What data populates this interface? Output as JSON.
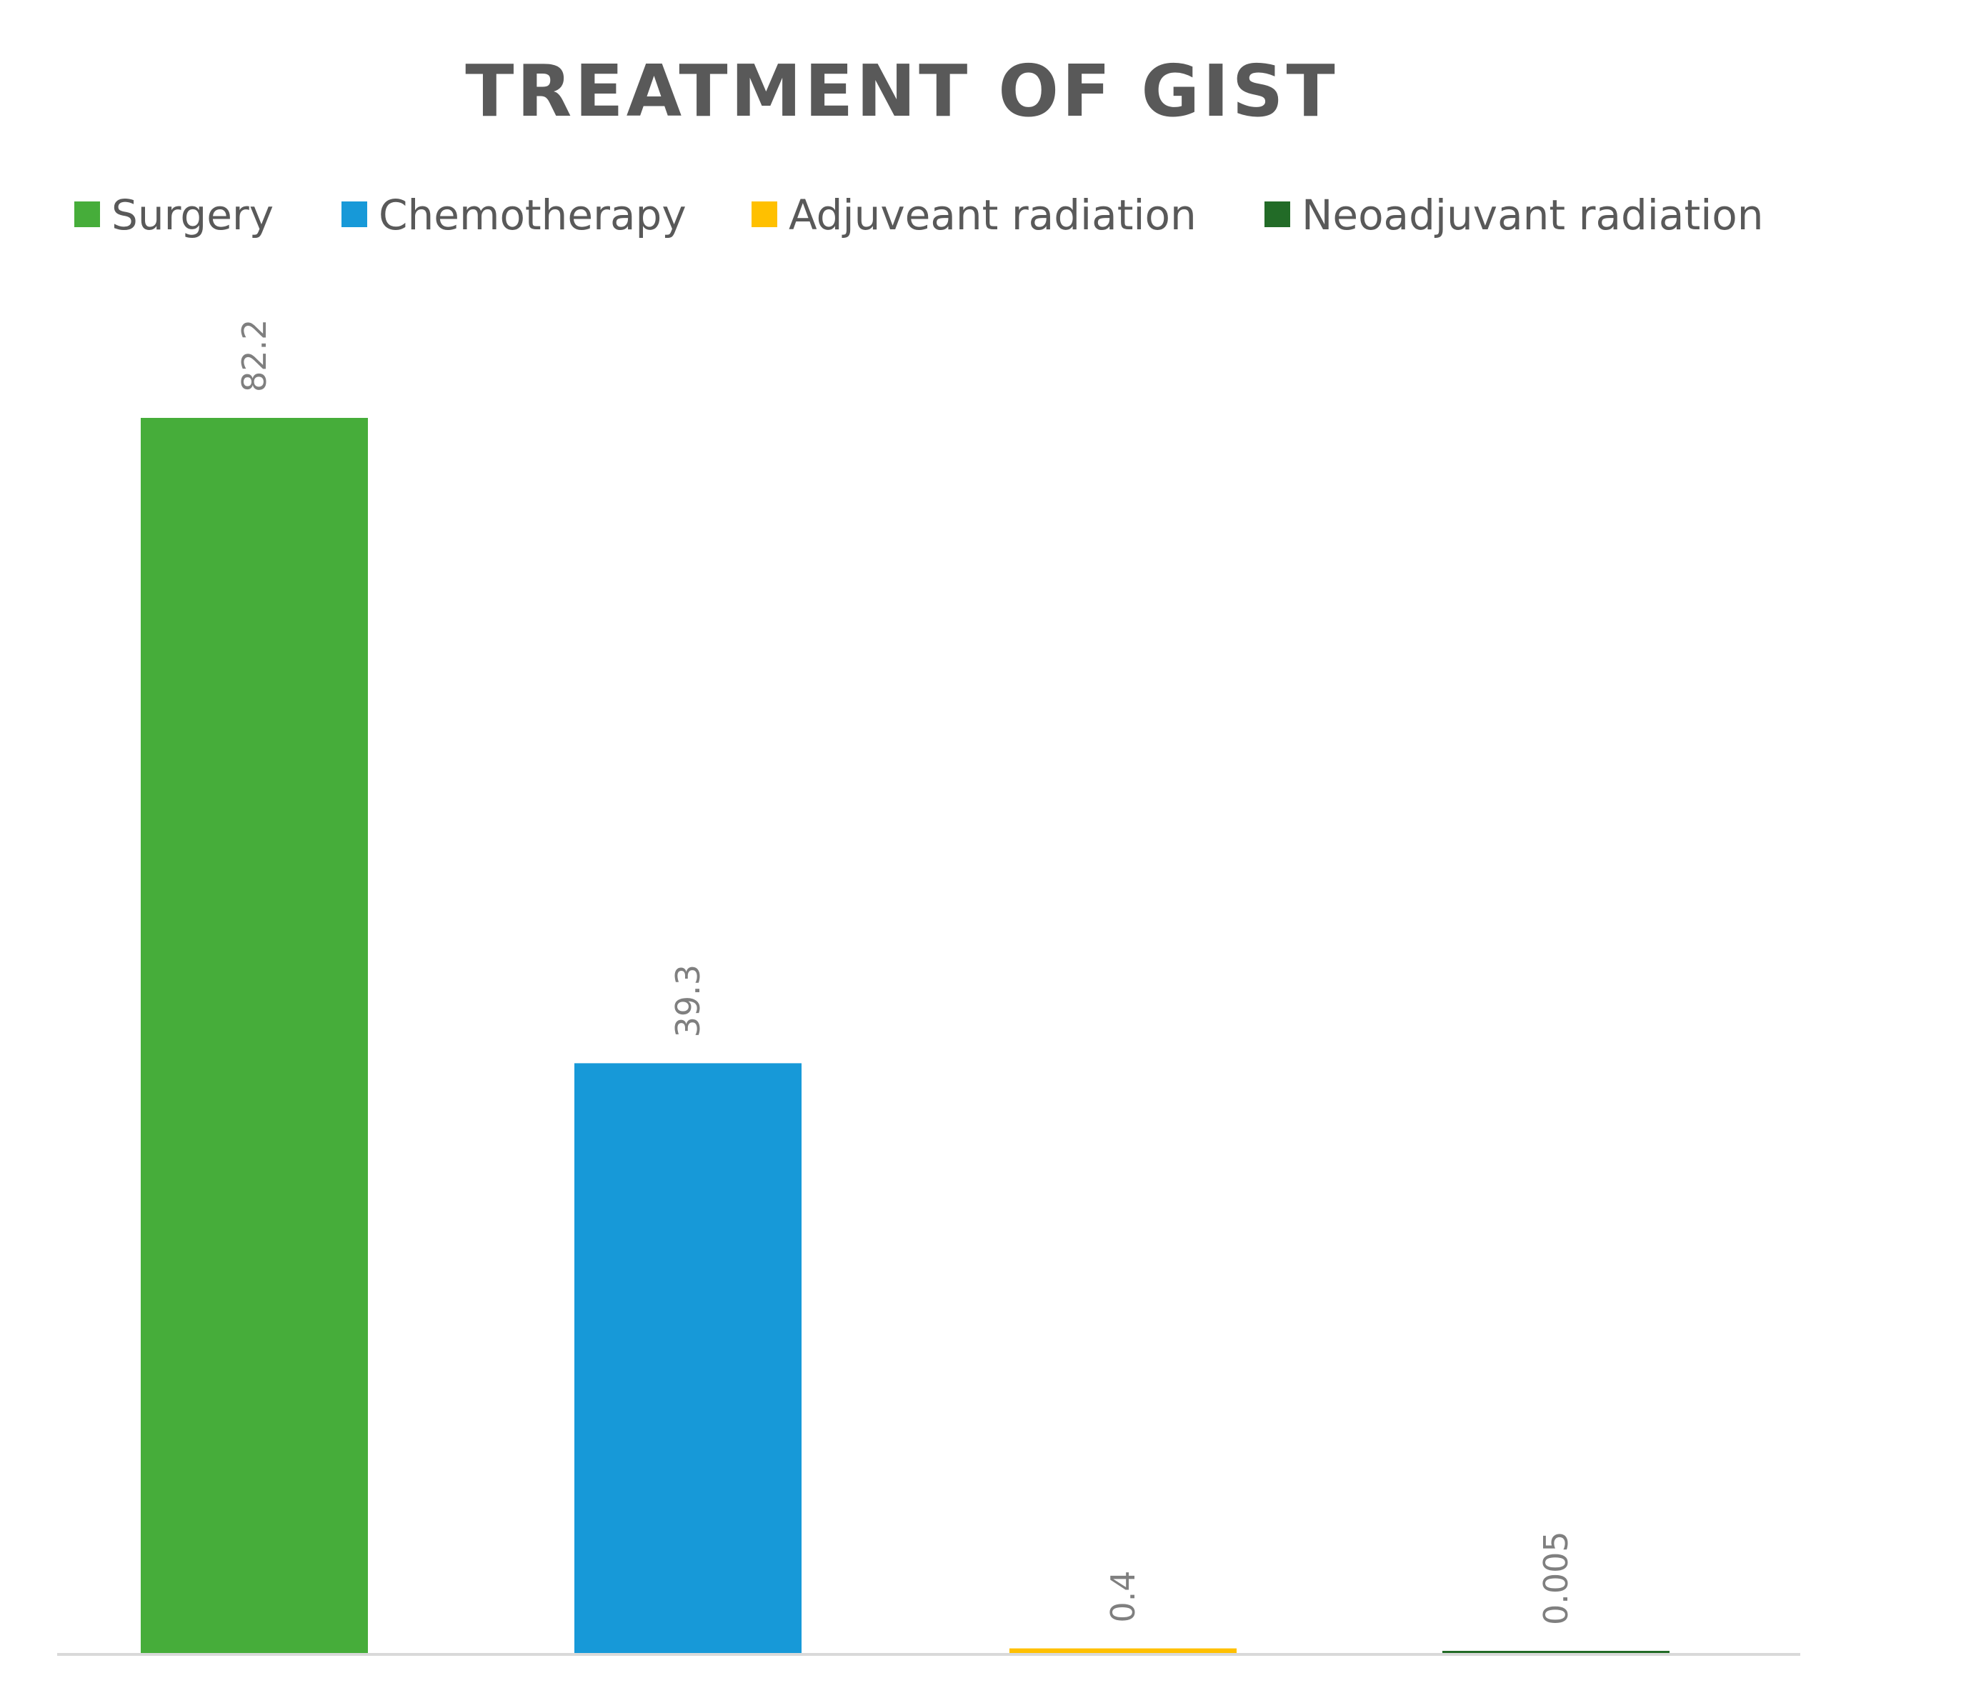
{
  "chart_data": {
    "type": "bar",
    "title": "TREATMENT OF GIST",
    "xlabel": "",
    "ylabel": "",
    "ylim": [
      0,
      82.2
    ],
    "grid": false,
    "legend_position": "top",
    "series": [
      {
        "name": "Surgery",
        "values": [
          82.2
        ],
        "color": "#46AD3A",
        "label": "82.2"
      },
      {
        "name": "Chemotherapy",
        "values": [
          39.3
        ],
        "color": "#1799D8",
        "label": "39.3"
      },
      {
        "name": "Adjuveant radiation",
        "values": [
          0.4
        ],
        "color": "#FFC000",
        "label": "0.4"
      },
      {
        "name": "Neoadjuvant radiation",
        "values": [
          0.005
        ],
        "color": "#226B27",
        "label": "0.005"
      }
    ]
  }
}
